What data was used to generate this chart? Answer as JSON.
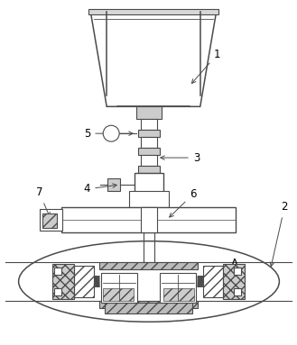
{
  "bg_color": "#ffffff",
  "line_color": "#4a4a4a",
  "lw": 0.8,
  "fig_w": 3.29,
  "fig_h": 3.83,
  "dpi": 100
}
